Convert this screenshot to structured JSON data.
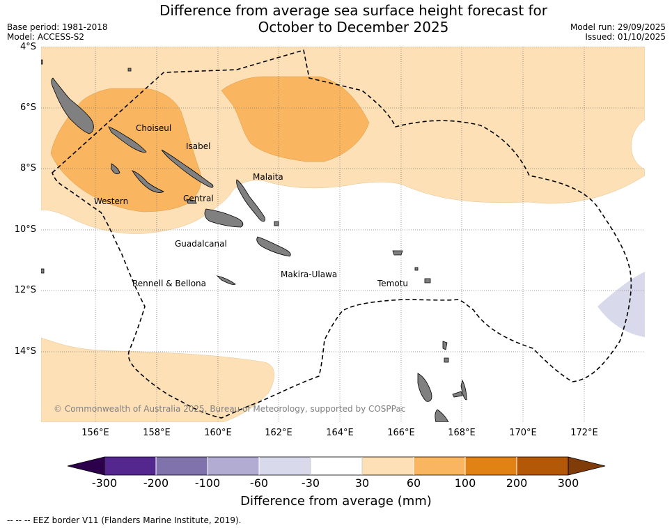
{
  "header": {
    "title_line1": "Difference from average sea surface height forecast for",
    "title_line2": "October to December 2025",
    "base_period": "Base period: 1981-2018",
    "model": "Model: ACCESS-S2",
    "model_run": "Model run: 29/09/2025",
    "issued": "Issued: 01/10/2025"
  },
  "map": {
    "lat_labels": [
      "4°S",
      "6°S",
      "8°S",
      "10°S",
      "12°S",
      "14°S"
    ],
    "lon_labels": [
      "156°E",
      "158°E",
      "160°E",
      "162°E",
      "164°E",
      "166°E",
      "168°E",
      "170°E",
      "172°E"
    ],
    "provinces": [
      "Choiseul",
      "Isabel",
      "Malaita",
      "Western",
      "Central",
      "Guadalcanal",
      "Makira-Ulawa",
      "Rennell & Bellona",
      "Temotu"
    ],
    "copyright": "© Commonwealth of Australia 2025, Bureau of Meteorology, supported by COSPPac",
    "colors": {
      "land": "#808080",
      "band_30_60": "#fde0b6",
      "band_60_100": "#f9b55f",
      "band_neg30_neg60": "#d8daeb"
    }
  },
  "colorbar": {
    "ticks": [
      "-300",
      "-200",
      "-100",
      "-60",
      "-30",
      "30",
      "60",
      "100",
      "200",
      "300"
    ],
    "colors": [
      "#54278f",
      "#8073ac",
      "#b2abd2",
      "#d8daeb",
      "#ffffff",
      "#fde0b6",
      "#f9b55f",
      "#e08214",
      "#b35806"
    ],
    "extend_low_color": "#2d004b",
    "extend_high_color": "#7f3b08",
    "label": "Difference from average (mm)"
  },
  "footnote": "--  --  -- EEZ border V11 (Flanders Marine Institute, 2019)."
}
